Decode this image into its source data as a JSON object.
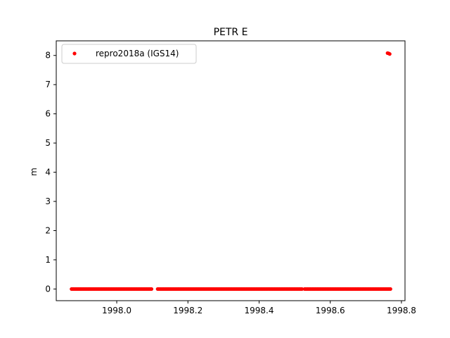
{
  "chart_data": {
    "type": "scatter",
    "title": "PETR E",
    "xlabel": "",
    "ylabel": "m",
    "xlim": [
      1997.83,
      1998.81
    ],
    "ylim": [
      -0.4,
      8.5
    ],
    "xticks": [
      1998.0,
      1998.2,
      1998.4,
      1998.6,
      1998.8
    ],
    "xtick_labels": [
      "1998.0",
      "1998.2",
      "1998.4",
      "1998.6",
      "1998.8"
    ],
    "yticks": [
      0,
      1,
      2,
      3,
      4,
      5,
      6,
      7,
      8
    ],
    "ytick_labels": [
      "0",
      "1",
      "2",
      "3",
      "4",
      "5",
      "6",
      "7",
      "8"
    ],
    "grid": false,
    "legend_position": "upper-left",
    "series": [
      {
        "name": "repro2018a (IGS14)",
        "color": "#ff0000",
        "marker": "circle",
        "segments": [
          {
            "x_start": 1997.873,
            "x_end": 1998.098,
            "step": 0.00274,
            "y": 0.0
          },
          {
            "x_start": 1998.115,
            "x_end": 1998.521,
            "step": 0.00274,
            "y": 0.0
          },
          {
            "x_start": 1998.528,
            "x_end": 1998.77,
            "step": 0.00274,
            "y": 0.0
          }
        ],
        "points": [
          {
            "x": 1998.761,
            "y": 8.08
          },
          {
            "x": 1998.764,
            "y": 8.07
          },
          {
            "x": 1998.767,
            "y": 8.05
          }
        ]
      }
    ]
  }
}
